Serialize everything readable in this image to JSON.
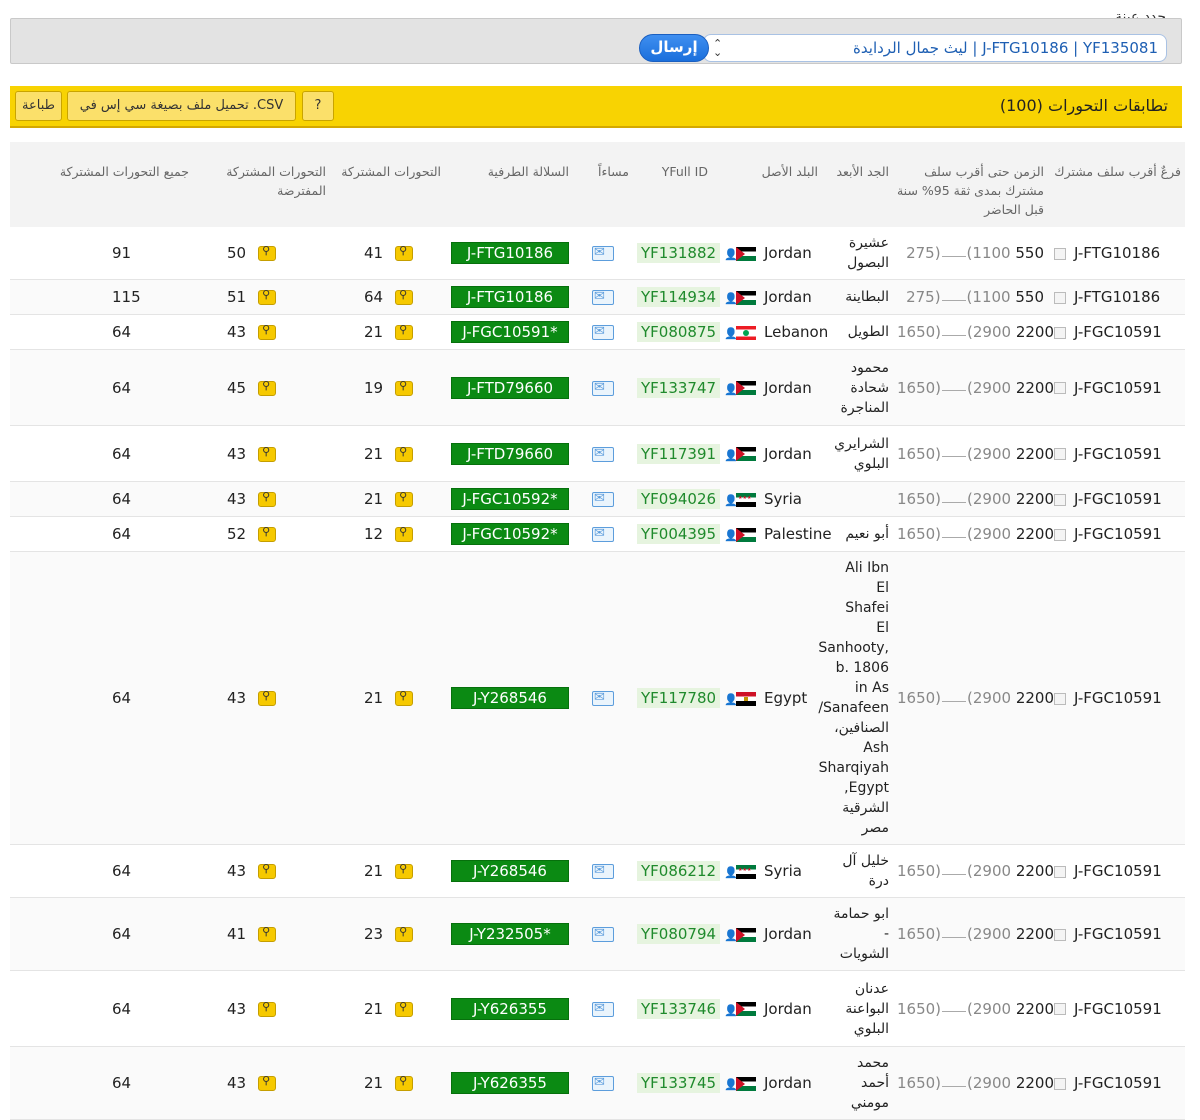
{
  "sample": {
    "label": "حدد عينة",
    "selected": "J-FTG10186 | YF135081 | ليث جمال الردايدة",
    "submit_label": "إرسال"
  },
  "bar": {
    "title": "تطابقات التحورات (100)",
    "help_label": "?",
    "csv_label": "تحميل ملف بصيغة سي إس في .CSV",
    "print_label": "طباعة"
  },
  "headers": {
    "branch": "فرعٌ أقرب سلف مشترك",
    "tmrca": "الزمن حتى أقرب سلف مشترك بمدى ثقة 95% سنة قبل الحاضر",
    "ancestor": "الجد الأبعد",
    "country": "البلد الأصل",
    "yfull": "YFull ID",
    "contact": "مساءاً",
    "terminal": "السلالة الطرفية",
    "shared": "التحورات المشتركة",
    "pshared": "التحورات المشتركة المفترضة",
    "all": "جميع التحورات المشتركة"
  },
  "rows": [
    {
      "branch": "J-FTG10186",
      "tmrca": "550",
      "range": "(1100",
      "range_end": "275)",
      "ancestor": "عشيرة البصول",
      "country": "Jordan",
      "flag": "jordan-flag",
      "yfull": "YF131882",
      "terminal": "J-FTG10186",
      "shared": "41",
      "pshared": "50",
      "all": "91"
    },
    {
      "branch": "J-FTG10186",
      "tmrca": "550",
      "range": "(1100",
      "range_end": "275)",
      "ancestor": "البطاينة",
      "country": "Jordan",
      "flag": "jordan-flag",
      "yfull": "YF114934",
      "terminal": "J-FTG10186",
      "shared": "64",
      "pshared": "51",
      "all": "115"
    },
    {
      "branch": "J-FGC10591",
      "tmrca": "2200",
      "range": "(2900",
      "range_end": "1650)",
      "ancestor": "الطويل",
      "country": "Lebanon",
      "flag": "lebanon-flag",
      "yfull": "YF080875",
      "terminal": "J-FGC10591*",
      "shared": "21",
      "pshared": "43",
      "all": "64"
    },
    {
      "branch": "J-FGC10591",
      "tmrca": "2200",
      "range": "(2900",
      "range_end": "1650)",
      "ancestor": "محمود شحادة المناجرة",
      "country": "Jordan",
      "flag": "jordan-flag",
      "yfull": "YF133747",
      "terminal": "J-FTD79660",
      "shared": "19",
      "pshared": "45",
      "all": "64"
    },
    {
      "branch": "J-FGC10591",
      "tmrca": "2200",
      "range": "(2900",
      "range_end": "1650)",
      "ancestor": "الشرايري البلوي",
      "country": "Jordan",
      "flag": "jordan-flag",
      "yfull": "YF117391",
      "terminal": "J-FTD79660",
      "shared": "21",
      "pshared": "43",
      "all": "64"
    },
    {
      "branch": "J-FGC10591",
      "tmrca": "2200",
      "range": "(2900",
      "range_end": "1650)",
      "ancestor": "",
      "country": "Syria",
      "flag": "syria-flag",
      "yfull": "YF094026",
      "terminal": "J-FGC10592*",
      "shared": "21",
      "pshared": "43",
      "all": "64"
    },
    {
      "branch": "J-FGC10591",
      "tmrca": "2200",
      "range": "(2900",
      "range_end": "1650)",
      "ancestor": "أبو نعيم",
      "country": "Palestine",
      "flag": "palestine-flag",
      "yfull": "YF004395",
      "terminal": "J-FGC10592*",
      "shared": "12",
      "pshared": "52",
      "all": "64"
    },
    {
      "branch": "J-FGC10591",
      "tmrca": "2200",
      "range": "(2900",
      "range_end": "1650)",
      "ancestor": "Ali Ibn El Shafei El Sanhooty, b. 1806 in As Sanafeen/الصنافين، Ash Sharqiyah ,Egypt الشرقية مصر",
      "country": "Egypt",
      "flag": "egypt-flag",
      "yfull": "YF117780",
      "terminal": "J-Y268546",
      "shared": "21",
      "pshared": "43",
      "all": "64"
    },
    {
      "branch": "J-FGC10591",
      "tmrca": "2200",
      "range": "(2900",
      "range_end": "1650)",
      "ancestor": "خليل آل درة",
      "country": "Syria",
      "flag": "syria-flag",
      "yfull": "YF086212",
      "terminal": "J-Y268546",
      "shared": "21",
      "pshared": "43",
      "all": "64"
    },
    {
      "branch": "J-FGC10591",
      "tmrca": "2200",
      "range": "(2900",
      "range_end": "1650)",
      "ancestor": "ابو حمامة - الشويات",
      "country": "Jordan",
      "flag": "jordan-flag",
      "yfull": "YF080794",
      "terminal": "J-Y232505*",
      "shared": "23",
      "pshared": "41",
      "all": "64"
    },
    {
      "branch": "J-FGC10591",
      "tmrca": "2200",
      "range": "(2900",
      "range_end": "1650)",
      "ancestor": "عدنان البواعنة البلوي",
      "country": "Jordan",
      "flag": "jordan-flag",
      "yfull": "YF133746",
      "terminal": "J-Y626355",
      "shared": "21",
      "pshared": "43",
      "all": "64"
    },
    {
      "branch": "J-FGC10591",
      "tmrca": "2200",
      "range": "(2900",
      "range_end": "1650)",
      "ancestor": "محمد أحمد مومني",
      "country": "Jordan",
      "flag": "jordan-flag",
      "yfull": "YF133745",
      "terminal": "J-Y626355",
      "shared": "21",
      "pshared": "43",
      "all": "64"
    }
  ]
}
